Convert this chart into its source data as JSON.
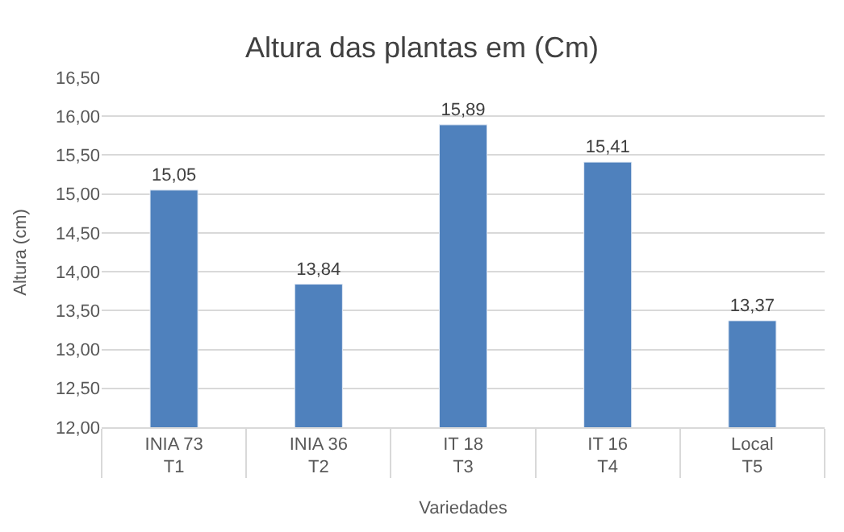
{
  "chart_data": {
    "type": "bar",
    "title": "Altura das plantas em (Cm)",
    "xlabel": "Variedades",
    "ylabel": "Altura (cm)",
    "categories": [
      "INIA 73\nT1",
      "INIA 36\nT2",
      "IT 18\nT3",
      "IT 16\nT4",
      "Local\nT5"
    ],
    "values": [
      15.05,
      13.84,
      15.89,
      15.41,
      13.37
    ],
    "value_labels": [
      "15,05",
      "13,84",
      "15,89",
      "15,41",
      "13,37"
    ],
    "color": "#4f81bd",
    "ylim": [
      12,
      16.5
    ],
    "yticks": [
      {
        "value": 12,
        "label": "12,00"
      },
      {
        "value": 12.5,
        "label": "12,50"
      },
      {
        "value": 13,
        "label": "13,00"
      },
      {
        "value": 13.5,
        "label": "13,50"
      },
      {
        "value": 14,
        "label": "14,00"
      },
      {
        "value": 14.5,
        "label": "14,50"
      },
      {
        "value": 15,
        "label": "15,00"
      },
      {
        "value": 15.5,
        "label": "15,50"
      },
      {
        "value": 16,
        "label": "16,00"
      },
      {
        "value": 16.5,
        "label": "16,50"
      }
    ],
    "grid": "y",
    "legend": false
  }
}
